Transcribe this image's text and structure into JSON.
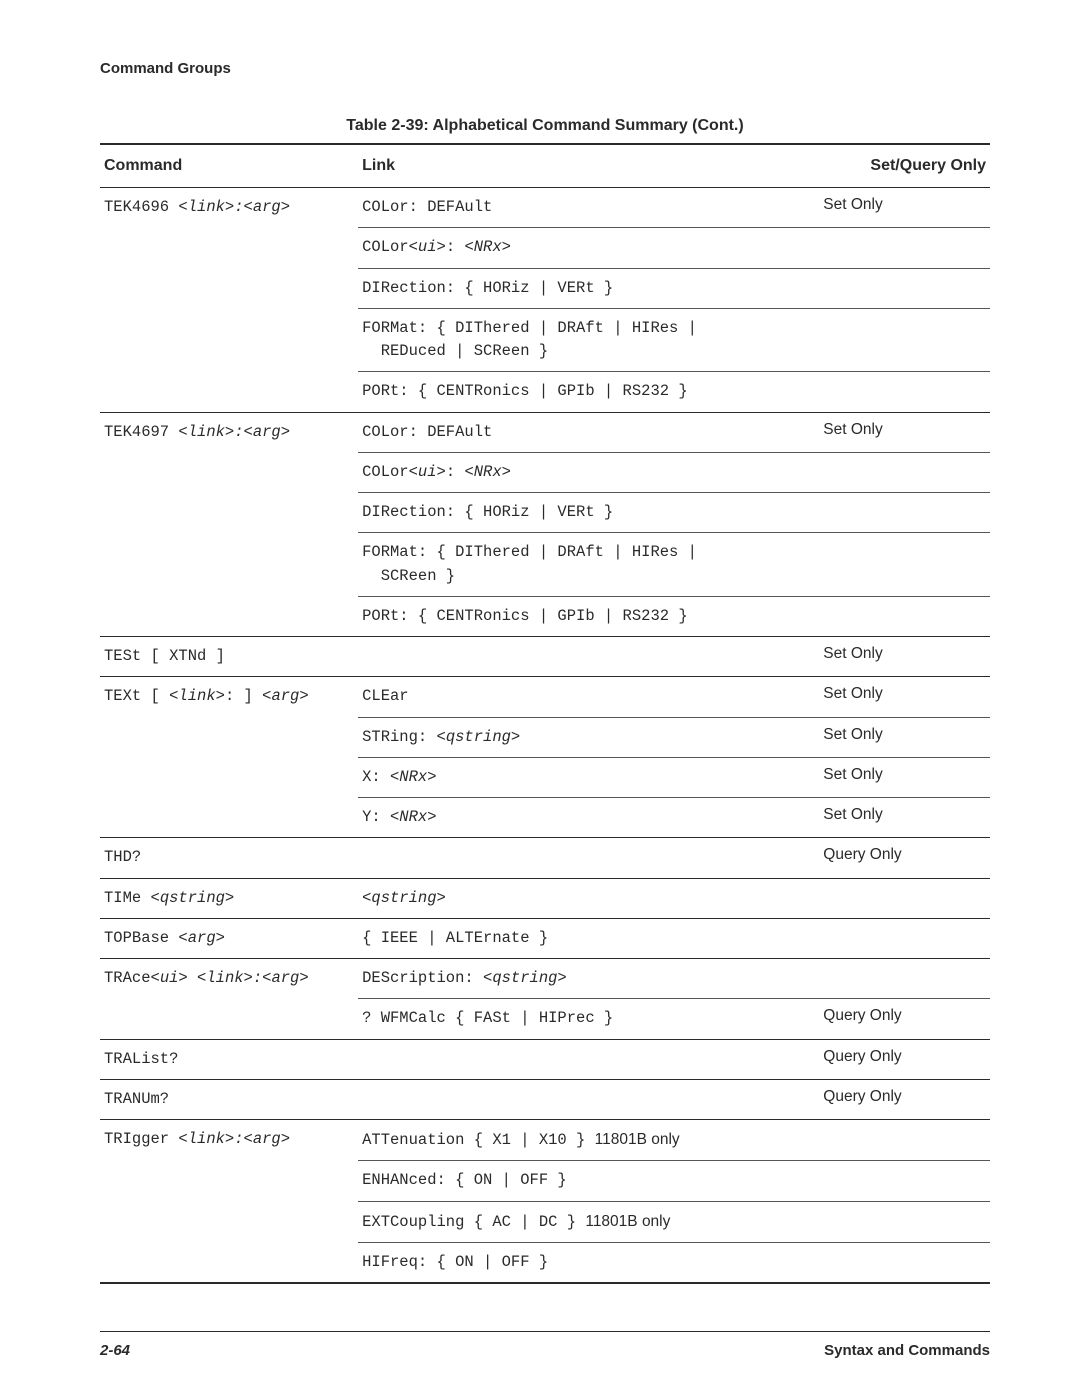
{
  "section_header": "Command Groups",
  "table_title": "Table 2-39:  Alphabetical Command Summary (Cont.)",
  "columns": {
    "command": "Command",
    "link": "Link",
    "setquery": "Set/Query Only"
  },
  "rows": [
    {
      "cmd": "TEK4696 <link>:<arg>",
      "cmd_ital": [
        8,
        22
      ],
      "link": "COLor: DEFAult",
      "sq": "Set Only",
      "top": "thick"
    },
    {
      "cmd": "",
      "link": "COLor<ui>: <NRx>",
      "link_ital": [
        [
          5,
          9
        ],
        [
          11,
          16
        ]
      ],
      "sq": "",
      "top": "thin"
    },
    {
      "cmd": "",
      "link": "DIRection: { HORiz | VERt }",
      "sq": "",
      "top": "thin"
    },
    {
      "cmd": "",
      "link": "FORMat: { DIThered | DRAft | HIRes |\n  REDuced | SCReen }",
      "sq": "",
      "top": "thin"
    },
    {
      "cmd": "",
      "link": "PORt: { CENTRonics | GPIb | RS232 }",
      "sq": "",
      "top": "thin"
    },
    {
      "cmd": "TEK4697 <link>:<arg>",
      "cmd_ital": [
        8,
        22
      ],
      "link": "COLor: DEFAult",
      "sq": "Set Only",
      "top": "thick"
    },
    {
      "cmd": "",
      "link": "COLor<ui>: <NRx>",
      "link_ital": [
        [
          5,
          9
        ],
        [
          11,
          16
        ]
      ],
      "sq": "",
      "top": "thin"
    },
    {
      "cmd": "",
      "link": "DIRection: { HORiz | VERt }",
      "sq": "",
      "top": "thin"
    },
    {
      "cmd": "",
      "link": "FORMat: { DIThered | DRAft | HIRes |\n  SCReen }",
      "sq": "",
      "top": "thin"
    },
    {
      "cmd": "",
      "link": "PORt: { CENTRonics | GPIb | RS232 }",
      "sq": "",
      "top": "thin"
    },
    {
      "cmd": "TESt [ XTNd ]",
      "link": "",
      "sq": "Set Only",
      "top": "thick"
    },
    {
      "cmd": "TEXt [ <link>: ] <arg>",
      "cmd_ital": [
        [
          7,
          13
        ],
        [
          17,
          22
        ]
      ],
      "link": "CLEar",
      "sq": "Set Only",
      "top": "thick"
    },
    {
      "cmd": "",
      "link": "STRing: <qstring>",
      "link_ital": [
        [
          8,
          17
        ]
      ],
      "sq": "Set Only",
      "top": "thin"
    },
    {
      "cmd": "",
      "link": "X: <NRx>",
      "link_ital": [
        [
          3,
          8
        ]
      ],
      "sq": "Set Only",
      "top": "thin"
    },
    {
      "cmd": "",
      "link": "Y: <NRx>",
      "link_ital": [
        [
          3,
          8
        ]
      ],
      "sq": "Set Only",
      "top": "thin"
    },
    {
      "cmd": "THD?",
      "link": "",
      "sq": "Query Only",
      "top": "thick"
    },
    {
      "cmd": "TIMe <qstring>",
      "cmd_ital": [
        5,
        14
      ],
      "link": "<qstring>",
      "link_ital": [
        [
          0,
          9
        ]
      ],
      "sq": "",
      "top": "thick"
    },
    {
      "cmd": "TOPBase <arg>",
      "cmd_ital": [
        8,
        13
      ],
      "link": "{ IEEE | ALTErnate }",
      "sq": "",
      "top": "thick"
    },
    {
      "cmd": "TRAce<ui> <link>:<arg>",
      "cmd_ital": [
        [
          5,
          9
        ],
        [
          10,
          24
        ]
      ],
      "link": "DEScription: <qstring>",
      "link_ital": [
        [
          13,
          22
        ]
      ],
      "sq": "",
      "top": "thick"
    },
    {
      "cmd": "",
      "link": "? WFMCalc { FASt | HIPrec }",
      "sq": "Query Only",
      "top": "thin"
    },
    {
      "cmd": "TRAList?",
      "link": "",
      "sq": "Query Only",
      "top": "thick"
    },
    {
      "cmd": "TRANUm?",
      "link": "",
      "sq": "Query Only",
      "top": "thick"
    },
    {
      "cmd": "TRIgger <link>:<arg>",
      "cmd_ital": [
        8,
        22
      ],
      "link": "ATTenuation { X1 | X10 } ",
      "annot": "11801B only",
      "sq": "",
      "top": "thick"
    },
    {
      "cmd": "",
      "link": "ENHANced: { ON | OFF }",
      "sq": "",
      "top": "thin"
    },
    {
      "cmd": "",
      "link": "EXTCoupling { AC | DC } ",
      "annot": "11801B only",
      "sq": "",
      "top": "thin"
    },
    {
      "cmd": "",
      "link": "HIFreq: { ON | OFF }",
      "sq": "",
      "top": "thin",
      "bottom": true
    }
  ],
  "footer": {
    "page": "2-64",
    "title": "Syntax and Commands"
  }
}
